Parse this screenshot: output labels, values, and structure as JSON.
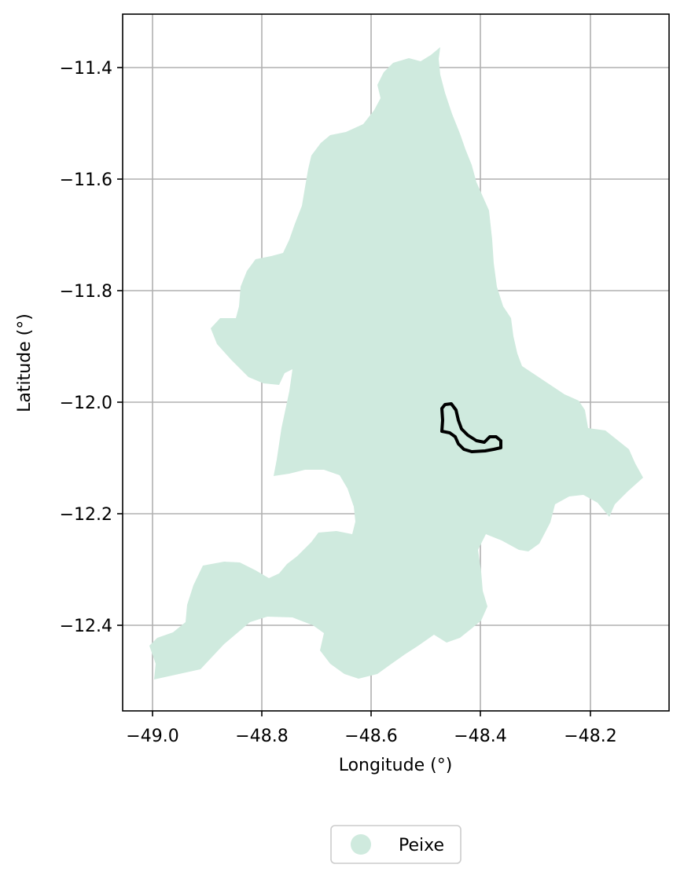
{
  "colors": {
    "region_fill": "#cfeade",
    "outline": "#000000",
    "grid": "#b0b0b0",
    "frame": "#000000"
  },
  "axes": {
    "xlabel": "Longitude (°)",
    "ylabel": "Latitude (°)",
    "x_ticks": [
      "−49.0",
      "−48.8",
      "−48.6",
      "−48.4",
      "−48.2"
    ],
    "y_ticks": [
      "−11.4",
      "−11.6",
      "−11.8",
      "−12.0",
      "−12.2",
      "−12.4"
    ],
    "grid": true
  },
  "legend": {
    "placement": "bottom-center",
    "entries": [
      {
        "label": "Peixe",
        "marker": "circle"
      }
    ]
  },
  "chart_data": {
    "type": "map",
    "xlim": [
      -49.05,
      -48.05
    ],
    "ylim": [
      -12.55,
      -11.3
    ],
    "layers": [
      {
        "name": "Peixe",
        "kind": "filled-region"
      },
      {
        "kind": "outline",
        "note_visible": false
      }
    ]
  }
}
